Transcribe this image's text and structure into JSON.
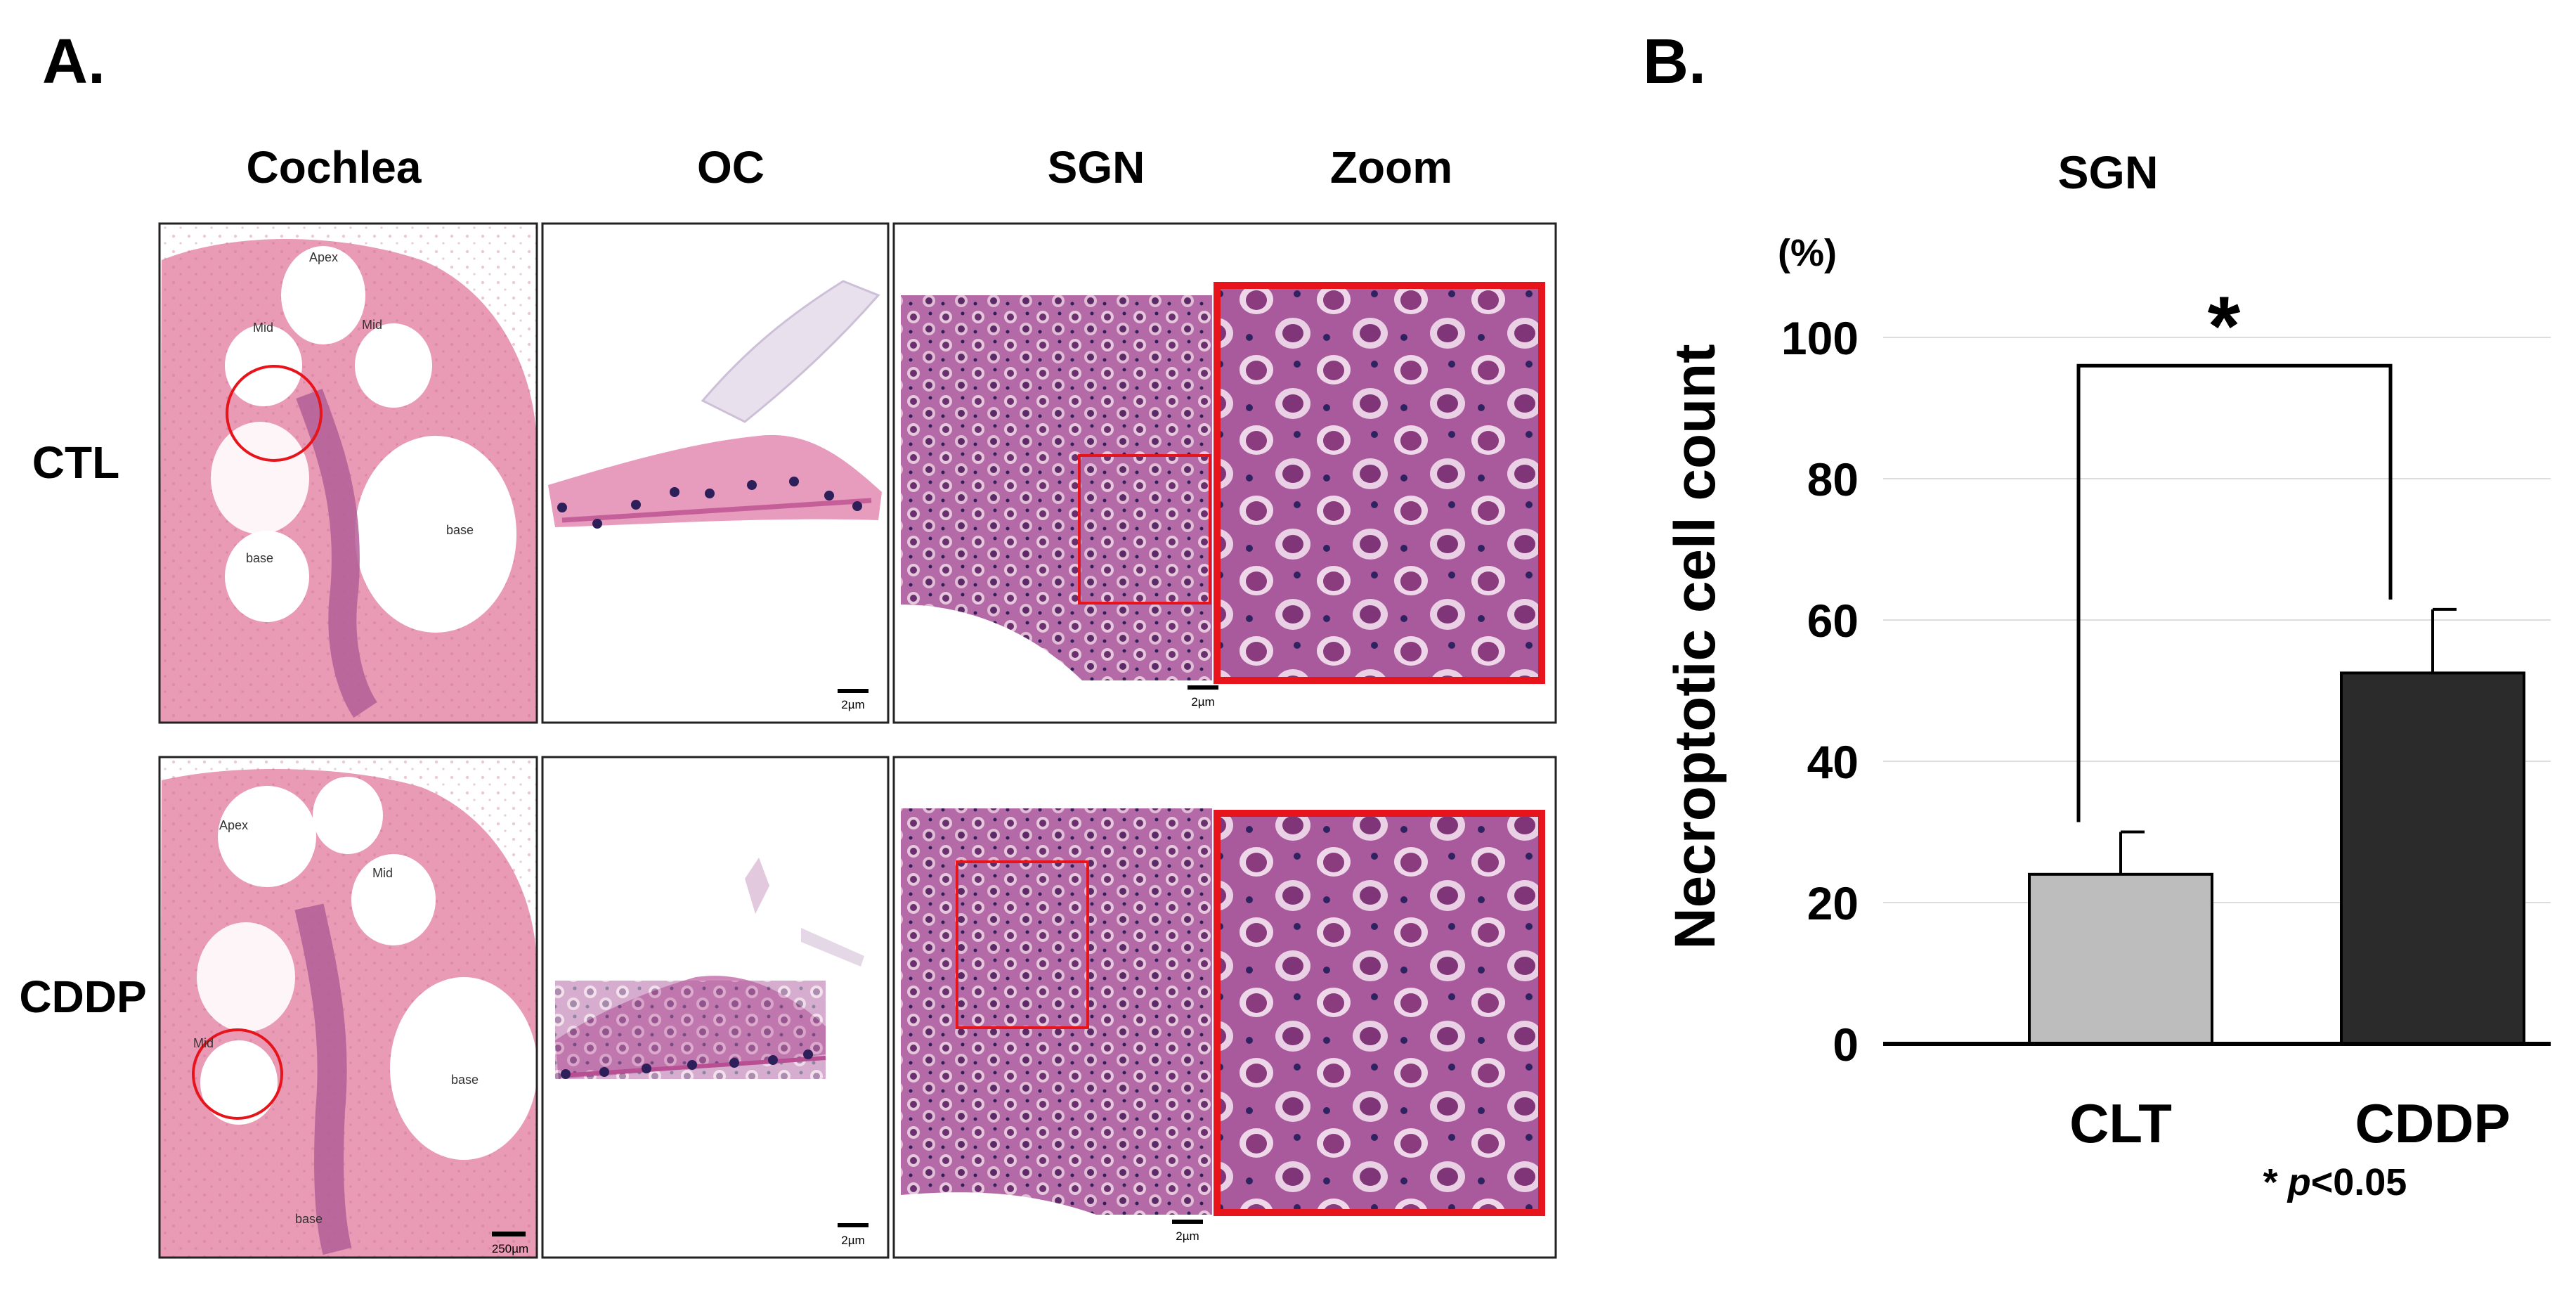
{
  "panel_a": {
    "label": "A.",
    "columns": [
      "Cochlea",
      "OC",
      "SGN",
      "Zoom"
    ],
    "rows": [
      "CTL",
      "CDDP"
    ],
    "cochlea_ctl": {
      "turns": [
        "Apex",
        "Mid",
        "Mid",
        "base",
        "base"
      ]
    },
    "cochlea_cddp": {
      "turns": [
        "Apex",
        "Mid",
        "Mid",
        "base",
        "base"
      ]
    },
    "scale_bars": {
      "cochlea": "250µm",
      "oc": "2µm",
      "sgn": "2µm"
    },
    "colors": {
      "he_pink": "#e99ab4",
      "he_purple": "#b26aa8",
      "nuclei": "#3c2a6e",
      "highlight_red": "#e8141c"
    }
  },
  "panel_b": {
    "label": "B.",
    "significance_marker": "*",
    "footnote_star": "*",
    "footnote_p": "p",
    "footnote_rest": "<0.05"
  },
  "chart_data": {
    "type": "bar",
    "title": "SGN",
    "ylabel": "Necroptotic cell count",
    "yunit": "(%)",
    "categories": [
      "CLT",
      "CDDP"
    ],
    "values": [
      24,
      52.5
    ],
    "errors": [
      6,
      9
    ],
    "ylim": [
      0,
      100
    ],
    "yticks": [
      0,
      20,
      40,
      60,
      80,
      100
    ],
    "grid": true,
    "bar_colors": [
      "#bdbdbd",
      "#2b2b2b"
    ],
    "significance": {
      "between": [
        "CLT",
        "CDDP"
      ],
      "marker": "*",
      "p": "p<0.05"
    }
  }
}
